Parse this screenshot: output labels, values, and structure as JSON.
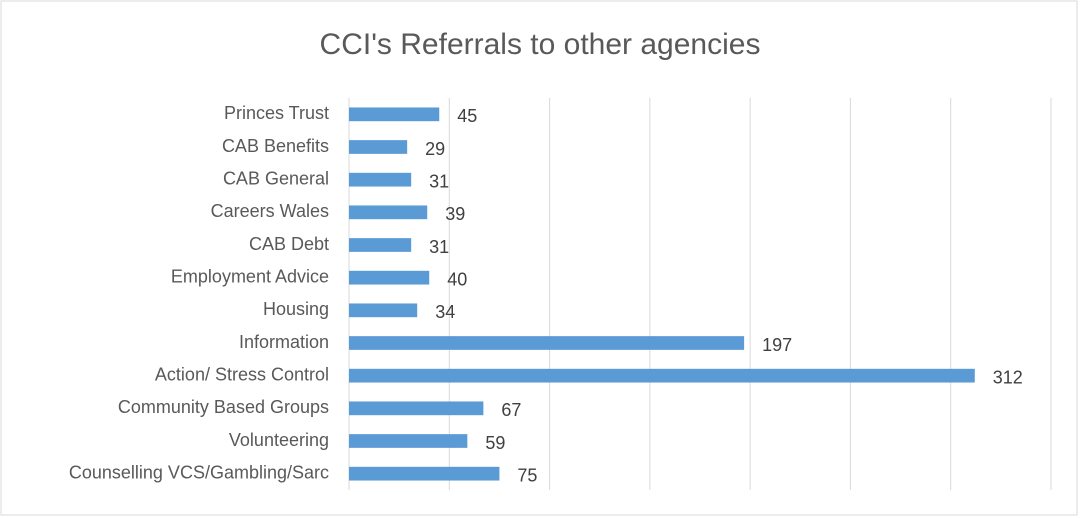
{
  "chart_data": {
    "type": "bar",
    "orientation": "horizontal",
    "title": "CCI's Referrals to other agencies",
    "categories": [
      "Princes Trust",
      "CAB Benefits",
      "CAB General",
      "Careers Wales",
      "CAB Debt",
      "Employment Advice",
      "Housing",
      "Information",
      "Action/ Stress Control",
      "Community Based Groups",
      "Volunteering",
      "Counselling VCS/Gambling/Sarc"
    ],
    "values": [
      45,
      29,
      31,
      39,
      31,
      40,
      34,
      197,
      312,
      67,
      59,
      75
    ],
    "color": "#5b9bd5",
    "xlim": [
      0,
      350
    ],
    "xticks": [
      0,
      50,
      100,
      150,
      200,
      250,
      300,
      350
    ],
    "grid": true
  }
}
